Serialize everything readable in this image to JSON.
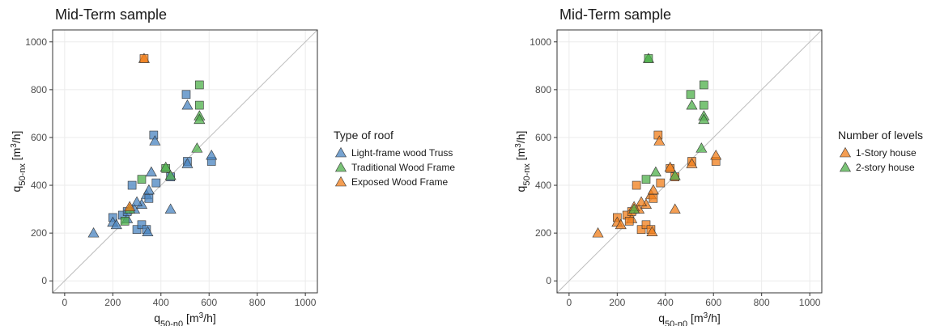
{
  "chart_data": [
    {
      "type": "scatter",
      "title": "Mid-Term sample",
      "xlabel": [
        "q",
        "50-n0",
        " [m",
        "3",
        "/h]"
      ],
      "ylabel": [
        "q",
        "50-nx",
        " [m",
        "3",
        "/h]"
      ],
      "legend_title": "Type of roof",
      "xlim": [
        -50,
        1050
      ],
      "ylim": [
        -50,
        1050
      ],
      "xticks": [
        0,
        200,
        400,
        600,
        800,
        1000
      ],
      "yticks": [
        0,
        200,
        400,
        600,
        800,
        1000
      ],
      "grid": true,
      "identity_line": true,
      "legend": "right",
      "series": [
        {
          "name": "Light-frame wood Truss",
          "color": "#4a84c0",
          "x": [
            505,
            510,
            370,
            375,
            120,
            200,
            200,
            215,
            240,
            260,
            260,
            290,
            300,
            320,
            320,
            340,
            345,
            340,
            350,
            350,
            380,
            440,
            440,
            510,
            510,
            610,
            610,
            280,
            300,
            360
          ],
          "values": [
            780,
            735,
            610,
            585,
            200,
            265,
            245,
            235,
            275,
            260,
            290,
            300,
            215,
            235,
            320,
            215,
            205,
            360,
            380,
            345,
            410,
            300,
            435,
            500,
            490,
            500,
            525,
            400,
            330,
            455
          ],
          "markers": [
            "square",
            "triangle",
            "square",
            "triangle",
            "triangle",
            "square",
            "triangle",
            "triangle",
            "square",
            "triangle",
            "square",
            "triangle",
            "square",
            "square",
            "triangle",
            "square",
            "triangle",
            "triangle",
            "triangle",
            "square",
            "square",
            "triangle",
            "square",
            "square",
            "triangle",
            "square",
            "triangle",
            "square",
            "triangle",
            "triangle"
          ]
        },
        {
          "name": "Traditional Wood Frame",
          "color": "#4daf4a",
          "x": [
            560,
            560,
            560,
            560,
            550,
            320,
            420,
            420,
            250,
            270,
            440
          ],
          "values": [
            820,
            735,
            690,
            675,
            555,
            425,
            470,
            475,
            250,
            300,
            440
          ],
          "markers": [
            "square",
            "square",
            "triangle",
            "triangle",
            "triangle",
            "square",
            "square",
            "triangle",
            "square",
            "triangle",
            "triangle"
          ]
        },
        {
          "name": "Exposed Wood Frame",
          "color": "#f07d1a",
          "x": [
            330,
            330,
            270
          ],
          "values": [
            930,
            930,
            310
          ],
          "markers": [
            "triangle",
            "square",
            "triangle"
          ]
        }
      ]
    },
    {
      "type": "scatter",
      "title": "Mid-Term sample",
      "xlabel": [
        "q",
        "50-n0",
        " [m",
        "3",
        "/h]"
      ],
      "ylabel": [
        "q",
        "50-nx",
        " [m",
        "3",
        "/h]"
      ],
      "legend_title": "Number of levels",
      "xlim": [
        -50,
        1050
      ],
      "ylim": [
        -50,
        1050
      ],
      "xticks": [
        0,
        200,
        400,
        600,
        800,
        1000
      ],
      "yticks": [
        0,
        200,
        400,
        600,
        800,
        1000
      ],
      "grid": true,
      "identity_line": true,
      "legend": "right",
      "series": [
        {
          "name": "1-Story house",
          "color": "#f07d1a",
          "x": [
            370,
            375,
            120,
            200,
            200,
            215,
            240,
            260,
            260,
            290,
            300,
            320,
            320,
            340,
            345,
            340,
            350,
            350,
            380,
            440,
            440,
            510,
            510,
            610,
            610,
            280,
            300,
            420,
            420,
            250,
            270
          ],
          "values": [
            610,
            585,
            200,
            265,
            245,
            235,
            275,
            260,
            290,
            300,
            215,
            235,
            320,
            215,
            205,
            360,
            380,
            345,
            410,
            300,
            435,
            500,
            490,
            500,
            525,
            400,
            330,
            470,
            475,
            250,
            310
          ],
          "markers": [
            "square",
            "triangle",
            "triangle",
            "square",
            "triangle",
            "triangle",
            "square",
            "triangle",
            "square",
            "triangle",
            "square",
            "square",
            "triangle",
            "square",
            "triangle",
            "triangle",
            "triangle",
            "square",
            "square",
            "triangle",
            "square",
            "square",
            "triangle",
            "square",
            "triangle",
            "square",
            "triangle",
            "square",
            "triangle",
            "square",
            "triangle"
          ]
        },
        {
          "name": "2-story house",
          "color": "#4daf4a",
          "x": [
            505,
            510,
            360,
            560,
            560,
            560,
            560,
            550,
            320,
            270,
            440,
            330,
            330
          ],
          "values": [
            780,
            735,
            455,
            820,
            735,
            690,
            675,
            555,
            425,
            300,
            440,
            930,
            930
          ],
          "markers": [
            "square",
            "triangle",
            "triangle",
            "square",
            "square",
            "triangle",
            "triangle",
            "triangle",
            "square",
            "triangle",
            "triangle",
            "triangle",
            "square"
          ]
        }
      ]
    }
  ]
}
